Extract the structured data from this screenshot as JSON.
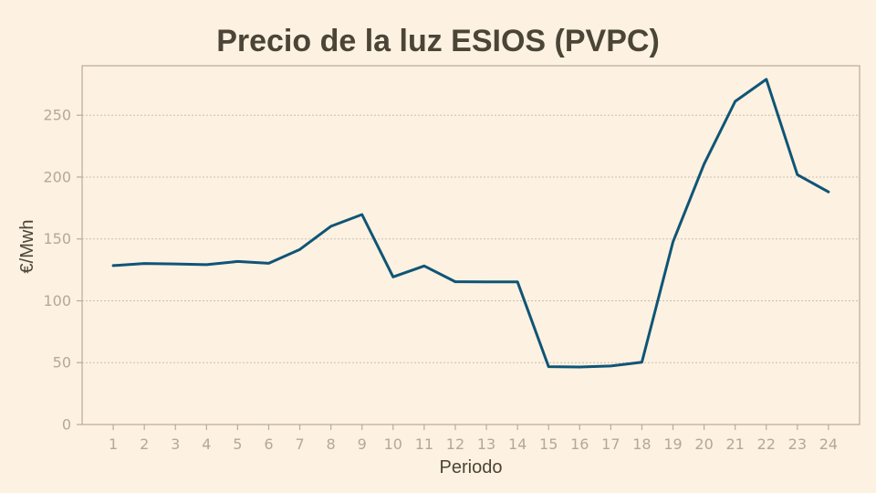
{
  "chart_data": {
    "type": "line",
    "title": "Precio de la luz ESIOS (PVPC)",
    "xlabel": "Periodo",
    "ylabel": "€/Mwh",
    "x": [
      1,
      2,
      3,
      4,
      5,
      6,
      7,
      8,
      9,
      10,
      11,
      12,
      13,
      14,
      15,
      16,
      17,
      18,
      19,
      20,
      21,
      22,
      23,
      24
    ],
    "series": [
      {
        "values": [
          128.5,
          130.2,
          129.8,
          129.2,
          131.8,
          130.3,
          141.5,
          160.2,
          169.7,
          119.3,
          128.2,
          115.4,
          115.3,
          115.3,
          46.8,
          46.5,
          47.3,
          50.3,
          147.6,
          210.5,
          261.2,
          279.0,
          202.0,
          188.0
        ]
      }
    ],
    "xlim": [
      0,
      25
    ],
    "ylim": [
      0,
      290
    ],
    "yticks": [
      0,
      50,
      100,
      150,
      200,
      250
    ],
    "grid": true,
    "colors": {
      "background": "#fdf1e1",
      "line": "#0f5576"
    }
  }
}
